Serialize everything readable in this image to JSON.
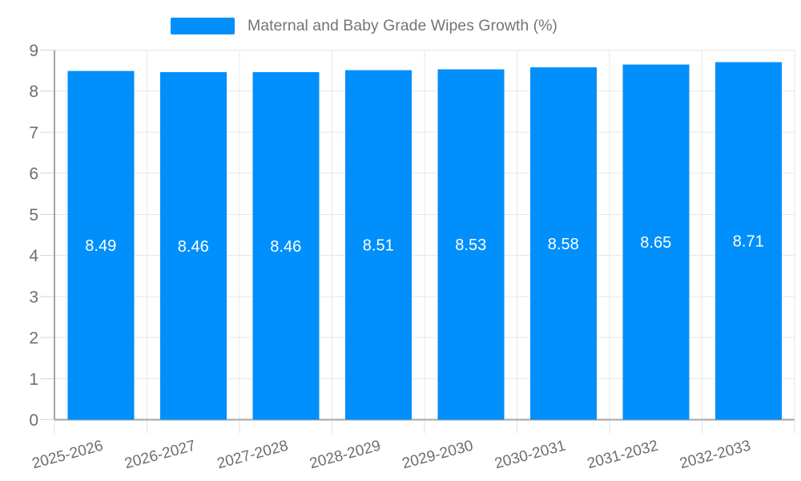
{
  "legend": {
    "label": "Maternal and Baby Grade Wipes Growth (%)",
    "marker_color": "#008FFB"
  },
  "chart_data": {
    "type": "bar",
    "title": "Maternal and Baby Grade Wipes Growth (%)",
    "categories": [
      "2025-2026",
      "2026-2027",
      "2027-2028",
      "2028-2029",
      "2029-2030",
      "2030-2031",
      "2031-2032",
      "2032-2033"
    ],
    "series": [
      {
        "name": "Maternal and Baby Grade Wipes Growth (%)",
        "values": [
          8.49,
          8.46,
          8.46,
          8.51,
          8.53,
          8.58,
          8.65,
          8.71
        ]
      }
    ],
    "data_labels": [
      "8.49",
      "8.46",
      "8.46",
      "8.51",
      "8.53",
      "8.58",
      "8.65",
      "8.71"
    ],
    "yticks": [
      "0",
      "1",
      "2",
      "3",
      "4",
      "5",
      "6",
      "7",
      "8",
      "9"
    ],
    "ylim": [
      0,
      9
    ],
    "ytick_step": 1,
    "xlabel": "",
    "ylabel": "",
    "grid": true,
    "legend_position": "top",
    "colors": {
      "bar": "#008FFB",
      "grid": "#e7e7e7",
      "axis_line": "#a6a6a6",
      "y_tick": "#d6d6d6",
      "x_tick": "#e0e0e0",
      "axis_label": "#6e6e6e",
      "legend_text": "#757575",
      "data_label": "#ffffff",
      "background": "#ffffff"
    }
  }
}
